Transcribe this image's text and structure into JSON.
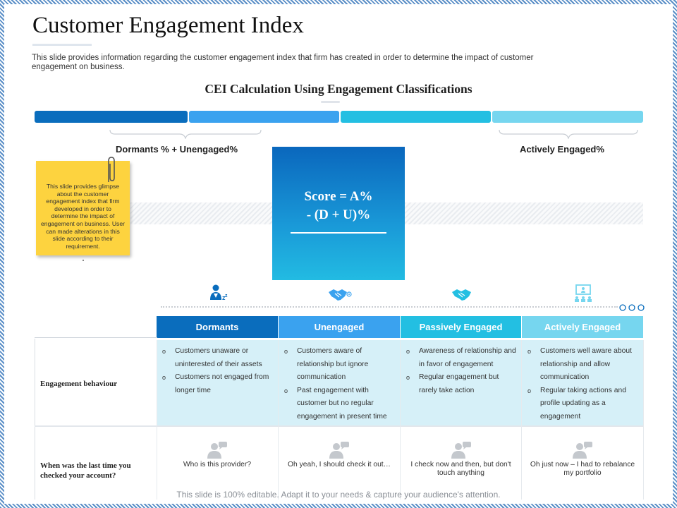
{
  "title": "Customer Engagement Index",
  "subtitle": "This slide provides information regarding the customer engagement index that firm has created in order to determine the impact of customer engagement on business.",
  "section_heading": "CEI Calculation Using Engagement Classifications",
  "left_brace_label": "Dormants % + Unengaged%",
  "right_brace_label": "Actively Engaged%",
  "sticky_note": "This slide provides glimpse about the customer engagement index that firm developed in order to determine the impact of engagement on business. User can made alterations in this slide according to their requirement.",
  "score": {
    "line1": "Score = A%",
    "line2": "- (D + U)%"
  },
  "icons": [
    "sleeping-person-icon",
    "handshake-icon",
    "handshake-icon",
    "presentation-audience-icon"
  ],
  "colors": {
    "dormants": "#0a6dbd",
    "unengaged": "#3aa2ef",
    "passively_engaged": "#23bfe2",
    "actively_engaged": "#76d6ef",
    "note": "#fdd33f",
    "cell_fill": "#d6f0f8"
  },
  "table": {
    "columns": [
      "Dormants",
      "Unengaged",
      "Passively Engaged",
      "Actively Engaged"
    ],
    "rows": [
      {
        "label": "Engagement behaviour",
        "cells": [
          [
            "Customers unaware or uninterested of their assets",
            "Customers not engaged from longer time"
          ],
          [
            "Customers aware of relationship but ignore communication",
            "Past engagement with customer but no regular engagement in present time"
          ],
          [
            "Awareness of relationship and in favor of engagement",
            "Regular engagement but rarely take action"
          ],
          [
            "Customers well aware about relationship and allow communication",
            "Regular taking actions and profile updating as a engagement"
          ]
        ]
      },
      {
        "label": "When was the last time you checked your account?",
        "cells": [
          "Who is this provider?",
          "Oh yeah, I should check it out…",
          "I check now and then, but don't touch anything",
          "Oh just now – I had to rebalance my portfolio"
        ]
      }
    ]
  },
  "footer": "This slide is 100% editable. Adapt it to your needs & capture your audience's attention."
}
